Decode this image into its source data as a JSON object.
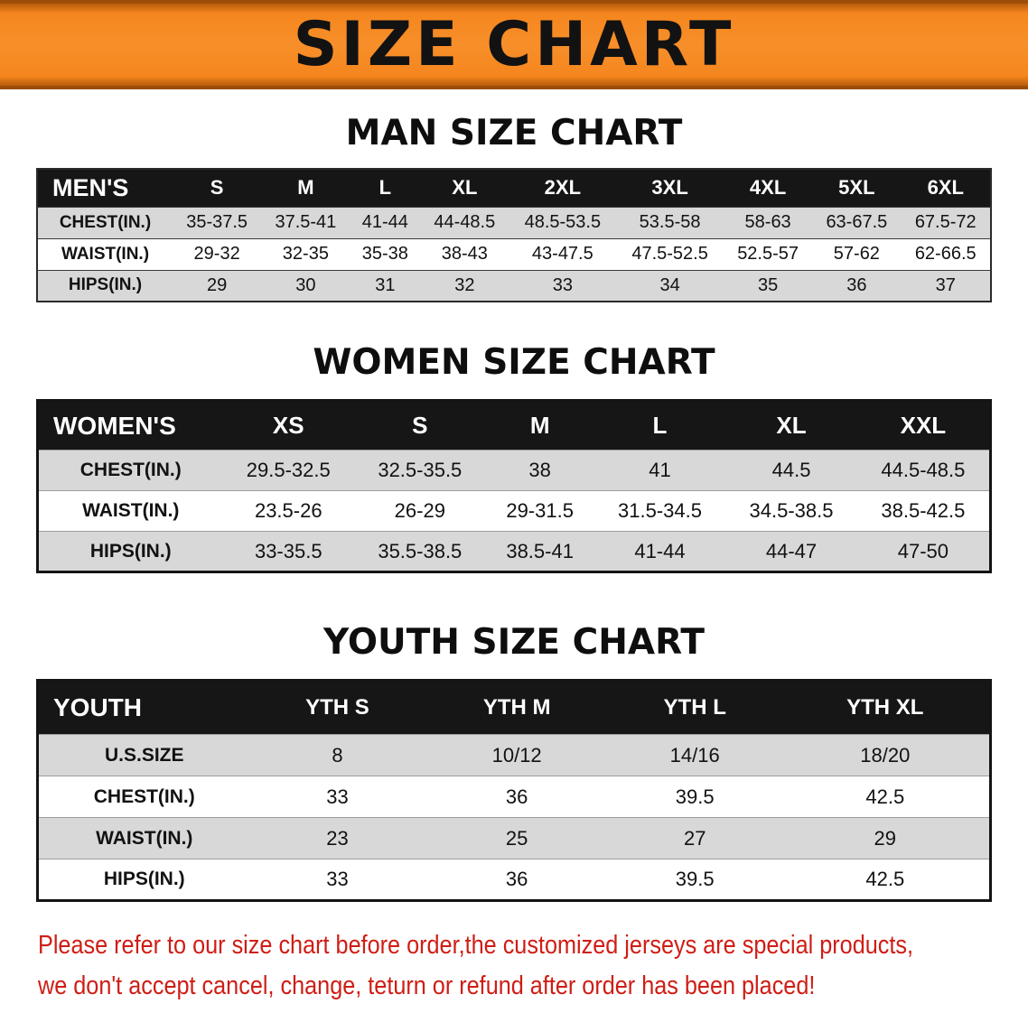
{
  "banner": {
    "title": "SIZE CHART"
  },
  "chart_data": [
    {
      "type": "table",
      "title": "MAN SIZE CHART",
      "group_label": "MEN'S",
      "columns": [
        "S",
        "M",
        "L",
        "XL",
        "2XL",
        "3XL",
        "4XL",
        "5XL",
        "6XL"
      ],
      "rows": [
        {
          "label": "CHEST(IN.)",
          "values": [
            "35-37.5",
            "37.5-41",
            "41-44",
            "44-48.5",
            "48.5-53.5",
            "53.5-58",
            "58-63",
            "63-67.5",
            "67.5-72"
          ]
        },
        {
          "label": "WAIST(IN.)",
          "values": [
            "29-32",
            "32-35",
            "35-38",
            "38-43",
            "43-47.5",
            "47.5-52.5",
            "52.5-57",
            "57-62",
            "62-66.5"
          ]
        },
        {
          "label": "HIPS(IN.)",
          "values": [
            "29",
            "30",
            "31",
            "32",
            "33",
            "34",
            "35",
            "36",
            "37"
          ]
        }
      ]
    },
    {
      "type": "table",
      "title": "WOMEN SIZE CHART",
      "group_label": "WOMEN'S",
      "columns": [
        "XS",
        "S",
        "M",
        "L",
        "XL",
        "XXL"
      ],
      "rows": [
        {
          "label": "CHEST(IN.)",
          "values": [
            "29.5-32.5",
            "32.5-35.5",
            "38",
            "41",
            "44.5",
            "44.5-48.5"
          ]
        },
        {
          "label": "WAIST(IN.)",
          "values": [
            "23.5-26",
            "26-29",
            "29-31.5",
            "31.5-34.5",
            "34.5-38.5",
            "38.5-42.5"
          ]
        },
        {
          "label": "HIPS(IN.)",
          "values": [
            "33-35.5",
            "35.5-38.5",
            "38.5-41",
            "41-44",
            "44-47",
            "47-50"
          ]
        }
      ]
    },
    {
      "type": "table",
      "title": "YOUTH SIZE CHART",
      "group_label": "YOUTH",
      "columns": [
        "YTH S",
        "YTH M",
        "YTH L",
        "YTH XL"
      ],
      "rows": [
        {
          "label": "U.S.SIZE",
          "values": [
            "8",
            "10/12",
            "14/16",
            "18/20"
          ]
        },
        {
          "label": "CHEST(IN.)",
          "values": [
            "33",
            "36",
            "39.5",
            "42.5"
          ]
        },
        {
          "label": "WAIST(IN.)",
          "values": [
            "23",
            "25",
            "27",
            "29"
          ]
        },
        {
          "label": "HIPS(IN.)",
          "values": [
            "33",
            "36",
            "39.5",
            "42.5"
          ]
        }
      ]
    }
  ],
  "footer": {
    "line1": "Please refer to our size chart before order,the customized jerseys are special products,",
    "line2": "we don't accept cancel, change, teturn or refund after order has been placed!"
  },
  "colors": {
    "banner_orange": "#f5861e",
    "banner_border": "#9c4d08",
    "header_black": "#161616",
    "stripe_gray": "#d8d8d8",
    "footer_red": "#cf1d15"
  }
}
